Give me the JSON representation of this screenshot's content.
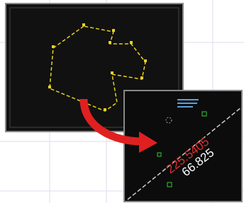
{
  "zoom_panel": {
    "primary_dimension": "225.5405",
    "secondary_dimension": "66.825"
  }
}
